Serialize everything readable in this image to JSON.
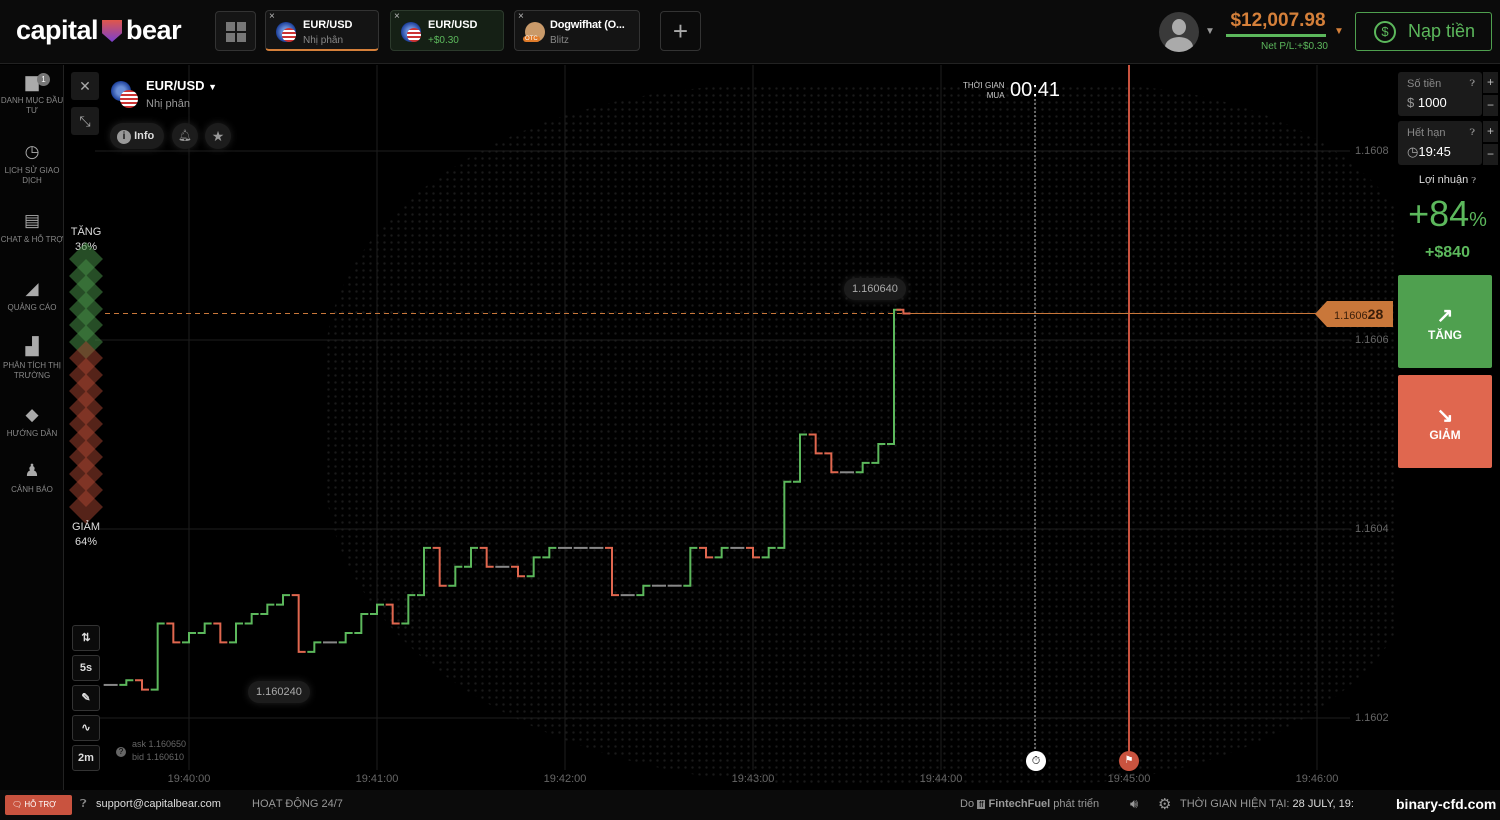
{
  "header": {
    "logo": "capital bear",
    "tabs": [
      {
        "title": "EUR/USD",
        "subtitle": "Nhị phân",
        "active": true
      },
      {
        "title": "EUR/USD",
        "subtitle": "+$0.30",
        "active": false
      },
      {
        "title": "Dogwifhat (O...",
        "subtitle": "Blitz",
        "badge": "OTC",
        "active": false
      }
    ],
    "add_tab": "+",
    "balance": "$12,007.98",
    "net_pl": "Net P/L:+$0.30",
    "deposit_label": "Nạp tiền",
    "colors": {
      "balance": "#d5803a",
      "accent_green": "#5cb85c",
      "accent_red": "#e0674f"
    }
  },
  "sidebar": {
    "items": [
      {
        "label": "DANH MỤC ĐẦU TƯ",
        "icon": "portfolio-icon",
        "badge": "1"
      },
      {
        "label": "LỊCH SỬ GIAO DỊCH",
        "icon": "clock-icon"
      },
      {
        "label": "CHAT & HỖ TRỢ",
        "icon": "chat-icon"
      },
      {
        "label": "QUẢNG CÁO",
        "icon": "megaphone-icon"
      },
      {
        "label": "PHÂN TÍCH THỊ TRƯỜNG",
        "icon": "bar-chart-icon"
      },
      {
        "label": "HƯỚNG DẪN",
        "icon": "graduation-cap-icon"
      },
      {
        "label": "CẢNH BÁO",
        "icon": "bell-icon"
      }
    ]
  },
  "asset": {
    "name": "EUR/USD",
    "type": "Nhị phân",
    "info": "Info"
  },
  "sentiment": {
    "up_label": "TĂNG",
    "up_pct": "36%",
    "down_label": "GIẢM",
    "down_pct": "64%",
    "up": 36,
    "down": 64
  },
  "timer": {
    "label_line1": "THỜI GIAN",
    "label_line2": "MUA",
    "value": "00:41"
  },
  "tools": {
    "timeframe": "5s",
    "zoom": "2m"
  },
  "quote": {
    "ask": "ask 1.160650",
    "bid": "bid 1.160610"
  },
  "chart_data": {
    "type": "line",
    "style": "step bars",
    "ylim": [
      1.16015,
      1.16087
    ],
    "yticks": [
      "1.1608",
      "1.1606",
      "1.1604",
      "1.1602"
    ],
    "xticks": [
      "19:40:00",
      "19:41:00",
      "19:42:00",
      "19:43:00",
      "19:44:00",
      "19:45:00",
      "19:46:00"
    ],
    "x": [
      "19:39:35",
      "19:39:40",
      "19:39:45",
      "19:39:50",
      "19:39:55",
      "19:40:00",
      "19:40:05",
      "19:40:10",
      "19:40:15",
      "19:40:20",
      "19:40:25",
      "19:40:30",
      "19:40:35",
      "19:40:40",
      "19:40:45",
      "19:40:50",
      "19:40:55",
      "19:41:00",
      "19:41:05",
      "19:41:10",
      "19:41:15",
      "19:41:20",
      "19:41:25",
      "19:41:30",
      "19:41:35",
      "19:41:40",
      "19:41:45",
      "19:41:50",
      "19:41:55",
      "19:42:00",
      "19:42:05",
      "19:42:10",
      "19:42:15",
      "19:42:20",
      "19:42:25",
      "19:42:30",
      "19:42:35",
      "19:42:40",
      "19:42:45",
      "19:42:50",
      "19:42:55",
      "19:43:00",
      "19:43:05",
      "19:43:10",
      "19:43:15",
      "19:43:20",
      "19:43:25",
      "19:43:30",
      "19:43:35",
      "19:43:40",
      "19:43:45",
      "19:43:48"
    ],
    "values": [
      1.160235,
      1.16024,
      1.16023,
      1.1603,
      1.16028,
      1.16029,
      1.1603,
      1.16028,
      1.1603,
      1.16031,
      1.16032,
      1.16033,
      1.16027,
      1.16028,
      1.16028,
      1.16029,
      1.16031,
      1.16032,
      1.1603,
      1.16033,
      1.16038,
      1.16034,
      1.16036,
      1.16038,
      1.16036,
      1.16036,
      1.16035,
      1.16037,
      1.16038,
      1.16038,
      1.16038,
      1.16038,
      1.16033,
      1.16033,
      1.16034,
      1.16034,
      1.16034,
      1.16038,
      1.16037,
      1.16038,
      1.16038,
      1.16037,
      1.16038,
      1.16045,
      1.1605,
      1.16048,
      1.16046,
      1.16046,
      1.16047,
      1.16049,
      1.160632,
      1.160628
    ],
    "max_label": "1.160640",
    "min_label": "1.160240",
    "current_price_prefix": "1.1606",
    "current_price_suffix": "28",
    "purchase_deadline": "19:44:30",
    "expiry": "19:45:00"
  },
  "trade": {
    "amount_label": "Số tiền",
    "amount_currency": "$",
    "amount": "1000",
    "expiry_label": "Hết hạn",
    "expiry": "19:45",
    "profit_label": "Lợi nhuận",
    "profit_pct": "+84",
    "pct_sign": "%",
    "profit_amount": "+$840",
    "up_button": "TĂNG",
    "down_button": "GIẢM"
  },
  "footer": {
    "support": "HỖ TRỢ",
    "email": "support@capitalbear.com",
    "hours": "HOẠT ĐỘNG 24/7",
    "by": "Do",
    "dev": "FintechFuel",
    "dev_suffix": "phát triển",
    "time_label": "THỜI GIAN HIỆN TẠI:",
    "time_value": "28 JULY, 19:",
    "watermark": "binary-cfd.com"
  }
}
